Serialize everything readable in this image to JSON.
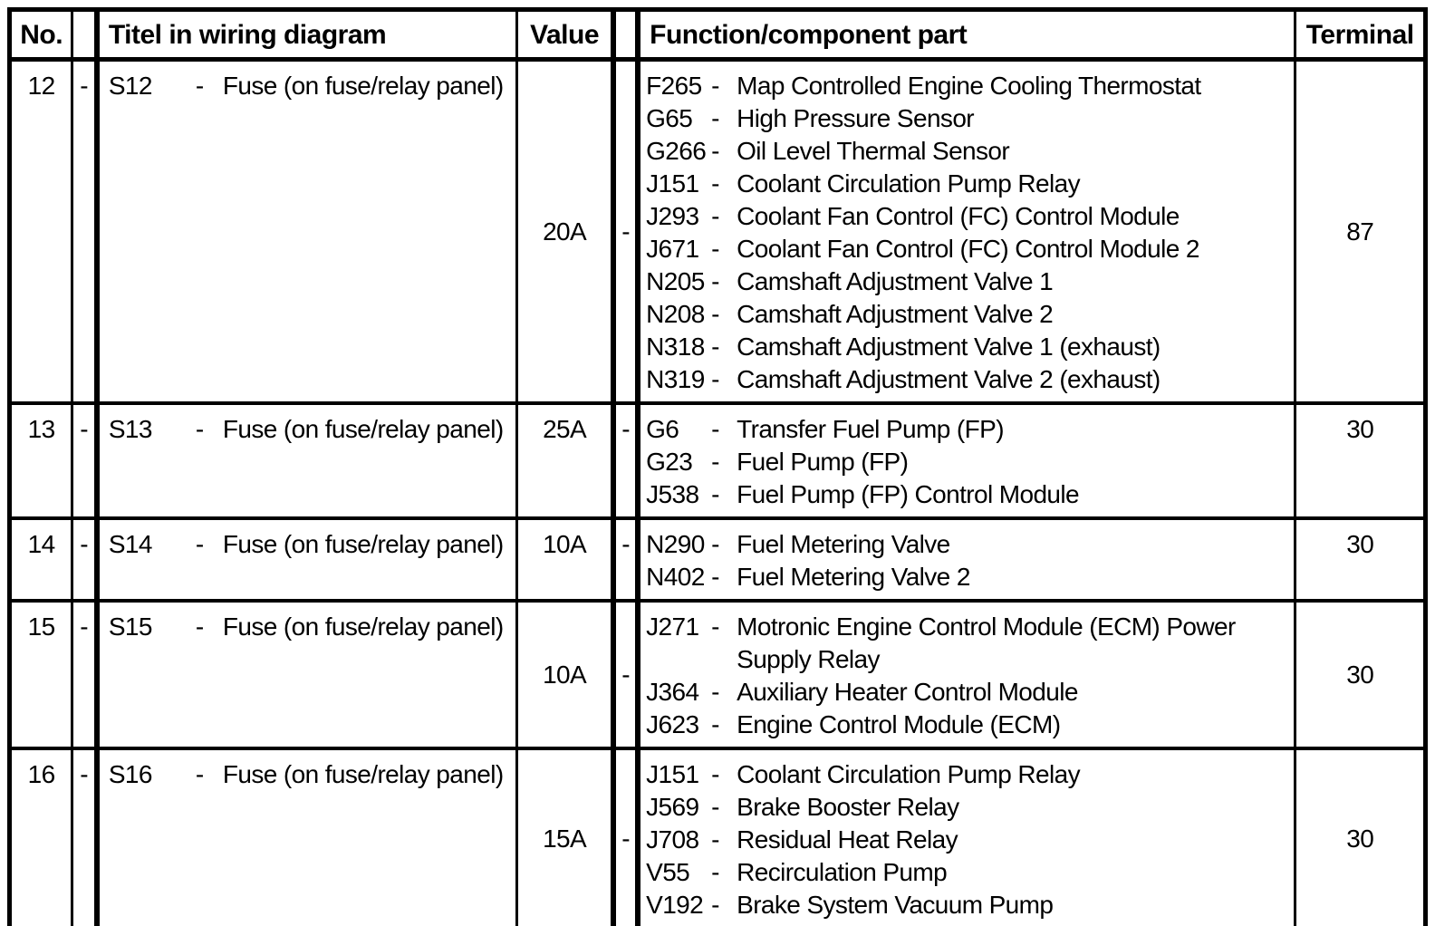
{
  "colors": {
    "text": "#000000",
    "background": "#ffffff",
    "border": "#000000"
  },
  "table": {
    "headers": [
      "No.",
      "",
      "Titel in wiring diagram",
      "Value",
      "",
      "Function/component part",
      "Terminal"
    ],
    "separators": {
      "titel_dash": "-",
      "entry_dash": "-"
    },
    "rows": [
      {
        "no": "12",
        "link_dash": "-",
        "code": "S12",
        "titel": "Fuse (on fuse/relay panel)",
        "value": "20A",
        "sep_dash": "-",
        "align": "middle",
        "height_class": "row-h-374",
        "functions": [
          {
            "code": "F265",
            "desc": "Map Controlled Engine Cooling Thermostat"
          },
          {
            "code": "G65",
            "desc": "High Pressure Sensor"
          },
          {
            "code": "G266",
            "desc": "Oil Level Thermal Sensor"
          },
          {
            "code": "J151",
            "desc": "Coolant Circulation Pump Relay"
          },
          {
            "code": "J293",
            "desc": "Coolant Fan Control (FC) Control Module"
          },
          {
            "code": "J671",
            "desc": "Coolant Fan Control (FC) Control Module 2"
          },
          {
            "code": "N205",
            "desc": "Camshaft Adjustment Valve 1"
          },
          {
            "code": "N208",
            "desc": "Camshaft Adjustment Valve 2"
          },
          {
            "code": "N318",
            "desc": "Camshaft Adjustment Valve 1 (exhaust)"
          },
          {
            "code": "N319",
            "desc": "Camshaft Adjustment Valve 2 (exhaust)"
          }
        ],
        "terminal": "87"
      },
      {
        "no": "13",
        "link_dash": "-",
        "code": "S13",
        "titel": "Fuse (on fuse/relay panel)",
        "value": "25A",
        "sep_dash": "-",
        "align": "top",
        "height_class": "row-h-120",
        "functions": [
          {
            "code": "G6",
            "desc": "Transfer Fuel Pump (FP)"
          },
          {
            "code": "G23",
            "desc": "Fuel Pump (FP)"
          },
          {
            "code": "J538",
            "desc": "Fuel Pump (FP) Control Module"
          }
        ],
        "terminal": "30"
      },
      {
        "no": "14",
        "link_dash": "-",
        "code": "S14",
        "titel": "Fuse (on fuse/relay panel)",
        "value": "10A",
        "sep_dash": "-",
        "align": "top",
        "height_class": "row-h-90",
        "functions": [
          {
            "code": "N290",
            "desc": "Fuel Metering Valve"
          },
          {
            "code": "N402",
            "desc": "Fuel Metering Valve 2"
          }
        ],
        "terminal": "30"
      },
      {
        "no": "15",
        "link_dash": "-",
        "code": "S15",
        "titel": "Fuse (on fuse/relay panel)",
        "value": "10A",
        "sep_dash": "-",
        "align": "middle",
        "height_class": "row-h-156",
        "functions": [
          {
            "code": "J271",
            "desc": "Motronic Engine Control Module (ECM) Power\nSupply Relay"
          },
          {
            "code": "J364",
            "desc": "Auxiliary Heater Control Module"
          },
          {
            "code": "J623",
            "desc": "Engine Control Module (ECM)"
          }
        ],
        "terminal": "30"
      },
      {
        "no": "16",
        "link_dash": "-",
        "code": "S16",
        "titel": "Fuse (on fuse/relay panel)",
        "value": "15A",
        "sep_dash": "-",
        "align": "middle",
        "height_class": "row-h-198",
        "functions": [
          {
            "code": "J151",
            "desc": "Coolant Circulation Pump Relay"
          },
          {
            "code": "J569",
            "desc": "Brake Booster Relay"
          },
          {
            "code": "J708",
            "desc": "Residual Heat Relay"
          },
          {
            "code": "V55",
            "desc": "Recirculation Pump"
          },
          {
            "code": "V192",
            "desc": "Brake System Vacuum Pump"
          }
        ],
        "terminal": "30"
      }
    ]
  }
}
